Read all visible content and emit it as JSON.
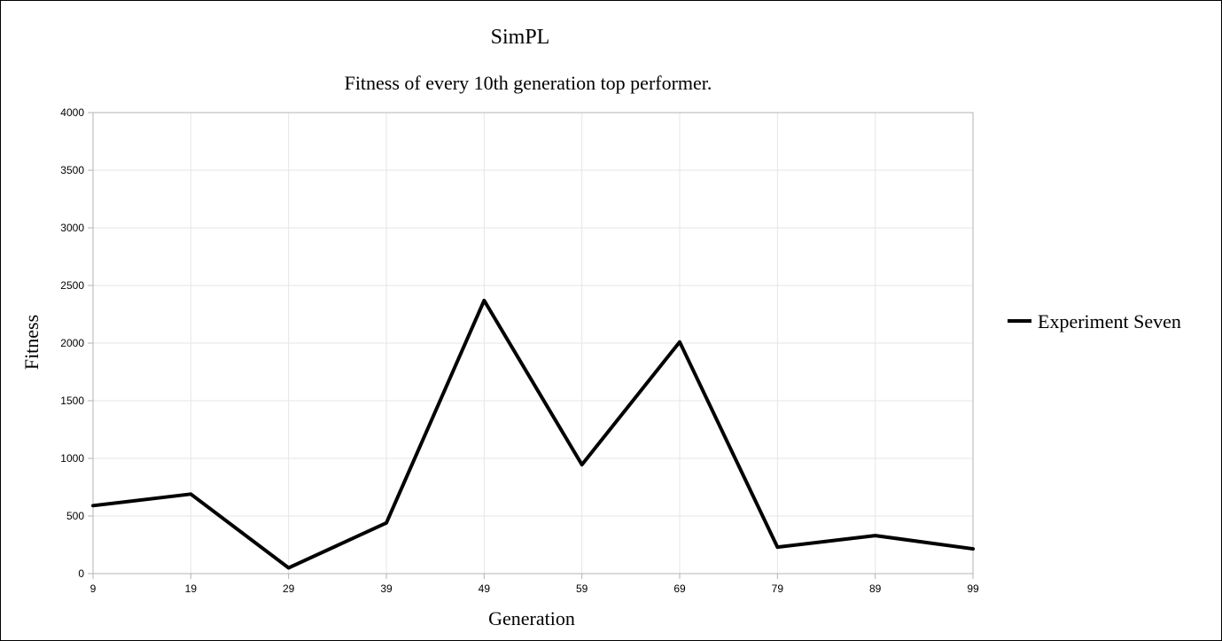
{
  "chart_data": {
    "type": "line",
    "title": "SimPL",
    "subtitle": "Fitness of every 10th generation top performer.",
    "xlabel": "Generation",
    "ylabel": "Fitness",
    "categories": [
      "9",
      "19",
      "29",
      "39",
      "49",
      "59",
      "69",
      "79",
      "89",
      "99"
    ],
    "series": [
      {
        "name": "Experiment Seven",
        "color": "#000000",
        "values": [
          590,
          690,
          50,
          440,
          2370,
          945,
          2010,
          230,
          330,
          215
        ]
      }
    ],
    "ylim": [
      0,
      4000
    ],
    "yticks": [
      0,
      500,
      1000,
      1500,
      2000,
      2500,
      3000,
      3500,
      4000
    ],
    "grid": true,
    "legend_position": "right"
  }
}
